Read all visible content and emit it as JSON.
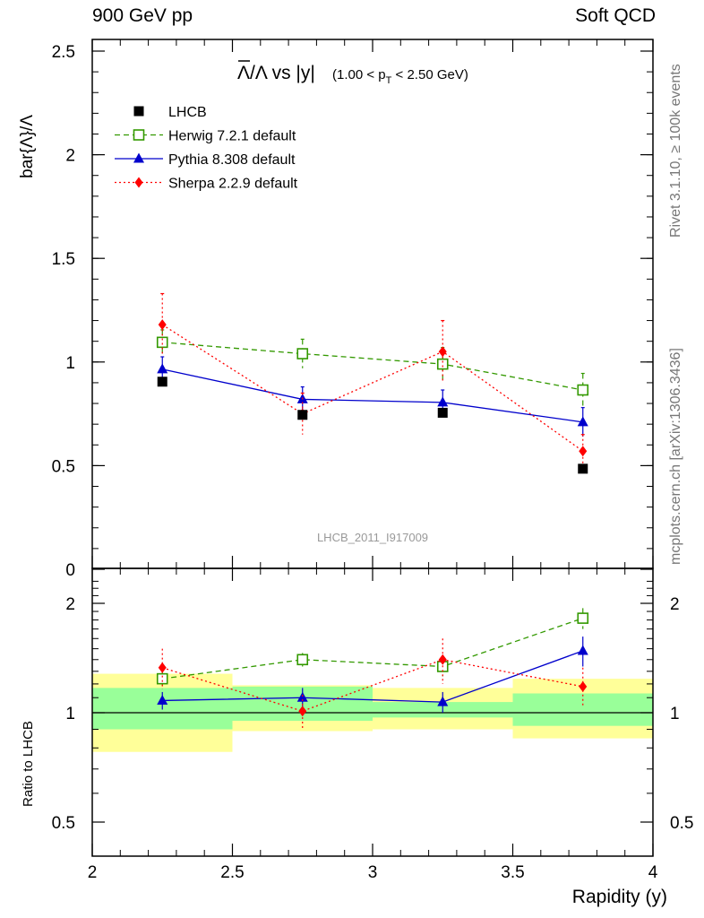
{
  "header": {
    "left": "900 GeV pp",
    "right": "Soft QCD"
  },
  "side_labels": {
    "rivet": "Rivet 3.1.10, ≥ 100k events",
    "source": "mcplots.cern.ch [arXiv:1306.3436]"
  },
  "chart_data": {
    "type": "line",
    "analysis_id": "LHCB_2011_I917009",
    "title": {
      "main": "Λ/Λ vs |y|",
      "overbar_char": "Λ",
      "range_prefix": "(1.00 < p",
      "range_sub": "T",
      "range_suffix": " < 2.50 GeV)"
    },
    "xlabel": "Rapidity (y)",
    "ylabel": "bar{Λ}/Λ",
    "ratio_ylabel": "Ratio to LHCB",
    "xlim": [
      2,
      4
    ],
    "ylim": [
      0,
      2.6
    ],
    "ratio_ylim": [
      0.35,
      2.35
    ],
    "ratio_log": true,
    "x_ticks": [
      2,
      2.5,
      3,
      3.5,
      4
    ],
    "x_tick_labels": [
      "2",
      "2.5",
      "3",
      "3.5",
      "4"
    ],
    "y_ticks": [
      0,
      0.5,
      1,
      1.5,
      2,
      2.5
    ],
    "y_tick_labels": [
      "0",
      "0.5",
      "1",
      "1.5",
      "2",
      "2.5"
    ],
    "ratio_ticks": [
      0.5,
      1,
      2
    ],
    "ratio_tick_labels": [
      "0.5",
      "1",
      "2"
    ],
    "bins": [
      [
        2.0,
        2.5
      ],
      [
        2.5,
        3.0
      ],
      [
        3.0,
        3.5
      ],
      [
        3.5,
        4.0
      ]
    ],
    "x": [
      2.25,
      2.75,
      3.25,
      3.75
    ],
    "data": {
      "name": "LHCB",
      "values": [
        0.905,
        0.745,
        0.755,
        0.485
      ],
      "band_stat": [
        [
          0.9,
          1.17
        ],
        [
          0.95,
          1.18
        ],
        [
          0.97,
          1.07
        ],
        [
          0.92,
          1.13
        ]
      ],
      "band_total": [
        [
          0.78,
          1.28
        ],
        [
          0.89,
          1.19
        ],
        [
          0.9,
          1.17
        ],
        [
          0.85,
          1.24
        ]
      ]
    },
    "series": [
      {
        "name": "Herwig 7.2.1 default",
        "color": "#339900",
        "dash": "6,4",
        "marker": "open-square",
        "values": [
          1.095,
          1.04,
          0.99,
          0.865
        ],
        "errors": [
          0.06,
          0.07,
          0.08,
          0.08
        ],
        "ratio": [
          1.24,
          1.4,
          1.34,
          1.82
        ],
        "ratio_errors": [
          0.06,
          0.06,
          0.08,
          0.12
        ]
      },
      {
        "name": "Pythia 8.308 default",
        "color": "#0000cc",
        "dash": "",
        "marker": "filled-triangle",
        "values": [
          0.965,
          0.82,
          0.805,
          0.71
        ],
        "errors": [
          0.06,
          0.06,
          0.06,
          0.07
        ],
        "ratio": [
          1.08,
          1.1,
          1.07,
          1.48
        ],
        "ratio_errors": [
          0.06,
          0.07,
          0.07,
          0.14
        ]
      },
      {
        "name": "Sherpa 2.2.9 default",
        "color": "#ff0000",
        "dash": "2,3",
        "marker": "filled-diamond",
        "values": [
          1.18,
          0.75,
          1.05,
          0.57
        ],
        "errors": [
          0.15,
          0.1,
          0.15,
          0.08
        ],
        "ratio": [
          1.33,
          1.01,
          1.4,
          1.18
        ],
        "ratio_errors": [
          0.17,
          0.11,
          0.2,
          0.15
        ]
      }
    ],
    "legend_position": "top-left",
    "grid": false
  }
}
